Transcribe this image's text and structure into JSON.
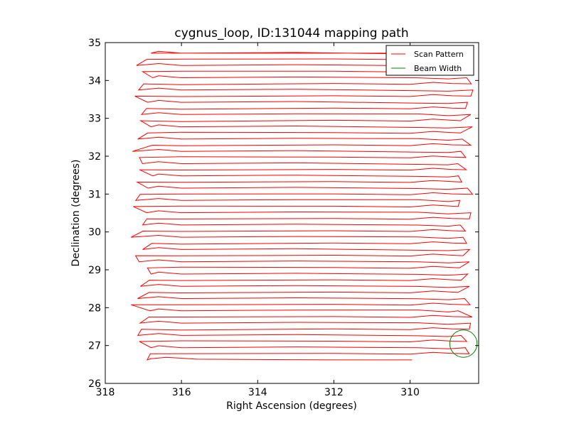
{
  "chart_data": {
    "type": "line",
    "title": "cygnus_loop, ID:131044 mapping path",
    "xlabel": "Right Ascension (degrees)",
    "ylabel": "Declination (degrees)",
    "xlim": [
      318,
      308.2
    ],
    "ylim": [
      26,
      35
    ],
    "x_ticks": [
      318,
      316,
      314,
      312,
      310
    ],
    "x_tick_labels": [
      "318",
      "316",
      "314",
      "312",
      "310"
    ],
    "y_ticks": [
      26,
      27,
      28,
      29,
      30,
      31,
      32,
      33,
      34,
      35
    ],
    "y_tick_labels": [
      "26",
      "27",
      "28",
      "29",
      "30",
      "31",
      "32",
      "33",
      "34",
      "35"
    ],
    "grid": false,
    "legend_position": "top-right",
    "series": [
      {
        "name": "Scan Pattern",
        "color": "#ff0000",
        "scan_rows": {
          "dec_start": 26.62,
          "dec_end": 34.74,
          "row_spacing": 0.162,
          "row_count": 51,
          "ra_east_min": 316.75,
          "ra_east_max": 317.35,
          "ra_west_min": 308.35,
          "ra_west_max": 308.75,
          "ra_end": 309.95
        }
      },
      {
        "name": "Beam Width",
        "color": "#008000",
        "circle": {
          "ra": 308.6,
          "dec": 27.05,
          "radius_deg": 0.36
        }
      }
    ]
  }
}
